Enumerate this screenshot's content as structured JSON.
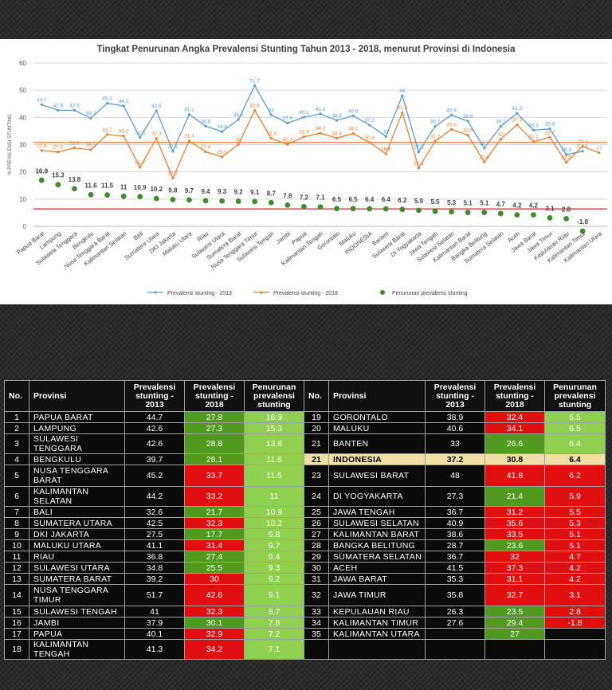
{
  "chart_data": {
    "type": "line",
    "title": "Tingkat Penurunan Angka Prevalensi Stunting Tahun 2013 - 2018, menurut Provinsi di Indonesia",
    "ylabel": "% PREVALENSI STUNTING",
    "xlabel": "",
    "ylim": [
      -20,
      60
    ],
    "yticks": [
      0,
      10,
      20,
      30,
      40,
      50,
      60
    ],
    "grid": true,
    "legend_position": "bottom",
    "categories": [
      "Papua Barat",
      "Lampung",
      "Sulawesi Tenggara",
      "Bengkulu",
      "Nusa Tenggara Barat",
      "Kalimantan Selatan",
      "Bali",
      "Sumatera Utara",
      "DKI Jakarta",
      "Maluku Utara",
      "Riau",
      "Sulawesi Utara",
      "Sumatera Barat",
      "Nusa Tenggara Timur",
      "Sulawesi Tengah",
      "Jambi",
      "Papua",
      "Kalimantan Tengah",
      "Gorontalo",
      "Maluku",
      "INDONESIA",
      "Banten",
      "Sulawesi Barat",
      "DI Yogyakarta",
      "Jawa Tengah",
      "Sulawesi Selatan",
      "Kalimantan Barat",
      "Bangka Belitung",
      "Sumatera Selatan",
      "Aceh",
      "Jawa Barat",
      "Jawa Timur",
      "Kepulauan Riau",
      "Kalimantan Timur",
      "Kalimantan Utara"
    ],
    "series": [
      {
        "name": "Prevalensi stunting - 2013",
        "color": "#5b9bd5",
        "style": "line-marker",
        "values": [
          44.7,
          42.6,
          42.6,
          39.7,
          45.2,
          44.2,
          32.6,
          42.5,
          27.5,
          41.1,
          36.8,
          34.8,
          39.2,
          51.7,
          41,
          37.9,
          40.1,
          41.3,
          38.9,
          40.6,
          37.2,
          33,
          48,
          27.3,
          36.7,
          40.9,
          38.6,
          28.7,
          36.7,
          41.5,
          35.3,
          35.8,
          26.3,
          27.6,
          null
        ]
      },
      {
        "name": "Prevalensi stunting - 2018",
        "color": "#ed7d31",
        "style": "line-marker",
        "values": [
          27.8,
          27.3,
          28.8,
          28.1,
          33.7,
          33.2,
          21.7,
          32.3,
          17.7,
          31.4,
          27.4,
          25.5,
          30,
          42.6,
          32.3,
          30.1,
          32.9,
          34.2,
          32.4,
          34.1,
          30.8,
          26.6,
          41.8,
          21.4,
          31.2,
          35.6,
          33.5,
          23.6,
          32,
          37.3,
          31.1,
          32.7,
          23.5,
          29.4,
          27
        ]
      },
      {
        "name": "Penurunan prevalensi stunting",
        "color": "#3f8a2c",
        "style": "dot",
        "values": [
          16.9,
          15.3,
          13.8,
          11.6,
          11.5,
          11,
          10.9,
          10.2,
          9.8,
          9.7,
          9.4,
          9.3,
          9.2,
          9.1,
          8.7,
          7.8,
          7.2,
          7.1,
          6.5,
          6.5,
          6.4,
          6.4,
          6.2,
          5.9,
          5.5,
          5.3,
          5.1,
          5.1,
          4.7,
          4.2,
          4.2,
          3.1,
          2.8,
          -1.8,
          null
        ]
      }
    ],
    "reference_lines": [
      {
        "value": 30.8,
        "color": "#ed7d31"
      },
      {
        "value": 6.4,
        "color": "#e02020"
      }
    ]
  },
  "table": {
    "headers": {
      "no": "No.",
      "provinsi": "Provinsi",
      "p2013": [
        "Prevalensi",
        "stunting -",
        "2013"
      ],
      "p2018": [
        "Prevalensi",
        "stunting -",
        "2018"
      ],
      "turun": [
        "Penurunan",
        "prevalensi",
        "stunting"
      ]
    },
    "colors": {
      "green": "#4f9a1f",
      "light_green": "#8fd051",
      "red": "#e01010",
      "highlight": "#efe0a3"
    },
    "rows": [
      {
        "left": {
          "no": "1",
          "name": "PAPUA BARAT",
          "p2013": "44.7",
          "p2018": "27.8",
          "turun": "16.9",
          "c2018": "g",
          "cturun": "lg"
        },
        "right": {
          "no": "19",
          "name": "GORONTALO",
          "p2013": "38.9",
          "p2018": "32.4",
          "turun": "6.5",
          "c2018": "r",
          "cturun": "lg"
        }
      },
      {
        "left": {
          "no": "2",
          "name": "LAMPUNG",
          "p2013": "42.6",
          "p2018": "27.3",
          "turun": "15.3",
          "c2018": "g",
          "cturun": "lg"
        },
        "right": {
          "no": "20",
          "name": "MALUKU",
          "p2013": "40.6",
          "p2018": "34.1",
          "turun": "6.5",
          "c2018": "r",
          "cturun": "lg"
        }
      },
      {
        "left": {
          "no": "3",
          "name": "SULAWESI TENGGARA",
          "p2013": "42.6",
          "p2018": "28.8",
          "turun": "13.8",
          "c2018": "g",
          "cturun": "lg"
        },
        "right": {
          "no": "21",
          "name": "BANTEN",
          "p2013": "33",
          "p2018": "26.6",
          "turun": "6.4",
          "c2018": "g",
          "cturun": "lg"
        }
      },
      {
        "left": {
          "no": "4",
          "name": "BENGKULU",
          "p2013": "39.7",
          "p2018": "28.1",
          "turun": "11.6",
          "c2018": "g",
          "cturun": "lg"
        },
        "right": {
          "no": "21",
          "name": "INDONESIA",
          "p2013": "37.2",
          "p2018": "30.8",
          "turun": "6.4",
          "c2018": "hl",
          "cturun": "hl",
          "hl": true
        }
      },
      {
        "tall": true,
        "left": {
          "no": "5",
          "name": "NUSA TENGGARA BARAT",
          "p2013": "45.2",
          "p2018": "33.7",
          "turun": "11.5",
          "c2018": "r",
          "cturun": "lg"
        },
        "right": {
          "no": "23",
          "name": "SULAWESI BARAT",
          "p2013": "48",
          "p2018": "41.8",
          "turun": "6.2",
          "c2018": "r",
          "cturun": "r"
        }
      },
      {
        "left": {
          "no": "6",
          "name": "KALIMANTAN SELATAN",
          "p2013": "44.2",
          "p2018": "33.2",
          "turun": "11",
          "c2018": "r",
          "cturun": "lg"
        },
        "right": {
          "no": "24",
          "name": "DI YOGYAKARTA",
          "p2013": "27.3",
          "p2018": "21.4",
          "turun": "5.9",
          "c2018": "g",
          "cturun": "r"
        }
      },
      {
        "left": {
          "no": "7",
          "name": "BALI",
          "p2013": "32.6",
          "p2018": "21.7",
          "turun": "10.9",
          "c2018": "g",
          "cturun": "lg"
        },
        "right": {
          "no": "25",
          "name": "JAWA TENGAH",
          "p2013": "36.7",
          "p2018": "31.2",
          "turun": "5.5",
          "c2018": "r",
          "cturun": "r"
        }
      },
      {
        "left": {
          "no": "8",
          "name": "SUMATERA UTARA",
          "p2013": "42.5",
          "p2018": "32.3",
          "turun": "10.2",
          "c2018": "r",
          "cturun": "lg"
        },
        "right": {
          "no": "26",
          "name": "SULAWESI SELATAN",
          "p2013": "40.9",
          "p2018": "35.6",
          "turun": "5.3",
          "c2018": "r",
          "cturun": "r"
        }
      },
      {
        "left": {
          "no": "9",
          "name": "DKI JAKARTA",
          "p2013": "27.5",
          "p2018": "17.7",
          "turun": "9.8",
          "c2018": "g",
          "cturun": "lg"
        },
        "right": {
          "no": "27",
          "name": "KALIMANTAN BARAT",
          "p2013": "38.6",
          "p2018": "33.5",
          "turun": "5.1",
          "c2018": "r",
          "cturun": "r"
        }
      },
      {
        "left": {
          "no": "10",
          "name": "MALUKU UTARA",
          "p2013": "41.1",
          "p2018": "31.4",
          "turun": "9.7",
          "c2018": "r",
          "cturun": "lg"
        },
        "right": {
          "no": "28",
          "name": "BANGKA BELITUNG",
          "p2013": "28.7",
          "p2018": "23.6",
          "turun": "5.1",
          "c2018": "g",
          "cturun": "r"
        }
      },
      {
        "left": {
          "no": "11",
          "name": "RIAU",
          "p2013": "36.8",
          "p2018": "27.4",
          "turun": "9.4",
          "c2018": "g",
          "cturun": "lg"
        },
        "right": {
          "no": "29",
          "name": "SUMATERA SELATAN",
          "p2013": "36.7",
          "p2018": "32",
          "turun": "4.7",
          "c2018": "r",
          "cturun": "r"
        }
      },
      {
        "left": {
          "no": "12",
          "name": "SULAWESI UTARA",
          "p2013": "34.8",
          "p2018": "25.5",
          "turun": "9.3",
          "c2018": "g",
          "cturun": "lg"
        },
        "right": {
          "no": "30",
          "name": "ACEH",
          "p2013": "41.5",
          "p2018": "37.3",
          "turun": "4.2",
          "c2018": "r",
          "cturun": "r"
        }
      },
      {
        "left": {
          "no": "13",
          "name": "SUMATERA BARAT",
          "p2013": "39.2",
          "p2018": "30",
          "turun": "9.2",
          "c2018": "r",
          "cturun": "lg"
        },
        "right": {
          "no": "31",
          "name": "JAWA BARAT",
          "p2013": "35.3",
          "p2018": "31.1",
          "turun": "4.2",
          "c2018": "r",
          "cturun": "r"
        }
      },
      {
        "tall": true,
        "left": {
          "no": "14",
          "name": "NUSA TENGGARA TIMUR",
          "p2013": "51.7",
          "p2018": "42.6",
          "turun": "9.1",
          "c2018": "r",
          "cturun": "lg"
        },
        "right": {
          "no": "32",
          "name": "JAWA TIMUR",
          "p2013": "35.8",
          "p2018": "32.7",
          "turun": "3.1",
          "c2018": "r",
          "cturun": "r"
        }
      },
      {
        "left": {
          "no": "15",
          "name": "SULAWESI TENGAH",
          "p2013": "41",
          "p2018": "32.3",
          "turun": "8.7",
          "c2018": "r",
          "cturun": "lg"
        },
        "right": {
          "no": "33",
          "name": "KEPULAUAN RIAU",
          "p2013": "26.3",
          "p2018": "23.5",
          "turun": "2.8",
          "c2018": "g",
          "cturun": "r"
        }
      },
      {
        "left": {
          "no": "16",
          "name": "JAMBI",
          "p2013": "37.9",
          "p2018": "30.1",
          "turun": "7.8",
          "c2018": "g",
          "cturun": "lg"
        },
        "right": {
          "no": "34",
          "name": "KALIMANTAN TIMUR",
          "p2013": "27.6",
          "p2018": "29.4",
          "turun": "-1.8",
          "c2018": "g",
          "cturun": "r"
        }
      },
      {
        "left": {
          "no": "17",
          "name": "PAPUA",
          "p2013": "40.1",
          "p2018": "32.9",
          "turun": "7.2",
          "c2018": "r",
          "cturun": "lg"
        },
        "right": {
          "no": "35",
          "name": "KALIMANTAN UTARA",
          "p2013": "",
          "p2018": "27",
          "turun": "",
          "c2018": "g",
          "cturun": ""
        }
      },
      {
        "left": {
          "no": "18",
          "name": "KALIMANTAN TENGAH",
          "p2013": "41.3",
          "p2018": "34.2",
          "turun": "7.1",
          "c2018": "r",
          "cturun": "lg"
        },
        "right": {
          "no": "",
          "name": "",
          "p2013": "",
          "p2018": "",
          "turun": "",
          "c2018": "",
          "cturun": ""
        }
      }
    ]
  }
}
